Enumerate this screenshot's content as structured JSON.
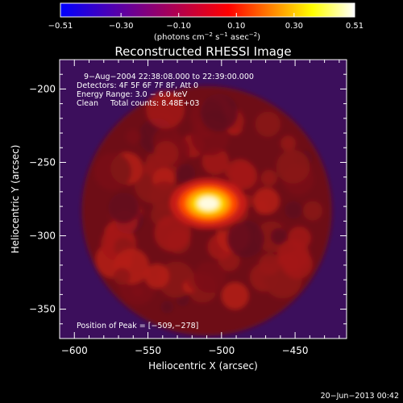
{
  "chart_data": {
    "type": "heatmap",
    "title": "Reconstructed RHESSI Image",
    "xlabel": "Heliocentric X (arcsec)",
    "ylabel": "Heliocentric Y (arcsec)",
    "xlim": [
      -610,
      -415
    ],
    "ylim": [
      -370,
      -180
    ],
    "xticks": [
      -600,
      -550,
      -500,
      -450
    ],
    "yticks": [
      -200,
      -250,
      -300,
      -350
    ],
    "xtick_labels": [
      "−600",
      "−550",
      "−500",
      "−450"
    ],
    "ytick_labels": [
      "−200",
      "−250",
      "−300",
      "−350"
    ],
    "colorbar": {
      "range": [
        -0.51,
        0.51
      ],
      "ticks": [
        -0.51,
        -0.3,
        -0.1,
        0.1,
        0.3,
        0.51
      ],
      "tick_labels": [
        "−0.51",
        "−0.30",
        "−0.10",
        "0.10",
        "0.30",
        "0.51"
      ],
      "colors": [
        "#0000ff",
        "#4000c0",
        "#7f0080",
        "#bf0040",
        "#ff0000",
        "#ff8000",
        "#ffff00",
        "#ffffff"
      ],
      "unit_parts": {
        "lead": "(photons cm",
        "sup1": "−2",
        "mid1": " s",
        "sup2": "−1",
        "mid2": " asec",
        "sup3": "−2",
        "tail": ")"
      }
    },
    "annotations": {
      "time": "9−Aug−2004 22:38:08.000 to 22:39:00.000",
      "detectors": "Detectors: 4F 5F 6F 7F 8F, Att 0",
      "energy": "Energy Range: 3.0 − 6.0 keV",
      "clean": "Clean     Total counts: 8.48E+03",
      "peak": "Position of Peak = [−509,−278]"
    },
    "peak": {
      "x": -509,
      "y": -278,
      "value": 0.51
    },
    "disk": {
      "center_x": -510,
      "center_y": -283,
      "radius": 85
    },
    "background_value": -0.16,
    "colors": {
      "background": "#000000",
      "axes": "#ffffff"
    }
  },
  "footer": {
    "date": "20−Jun−2013 00:42"
  }
}
